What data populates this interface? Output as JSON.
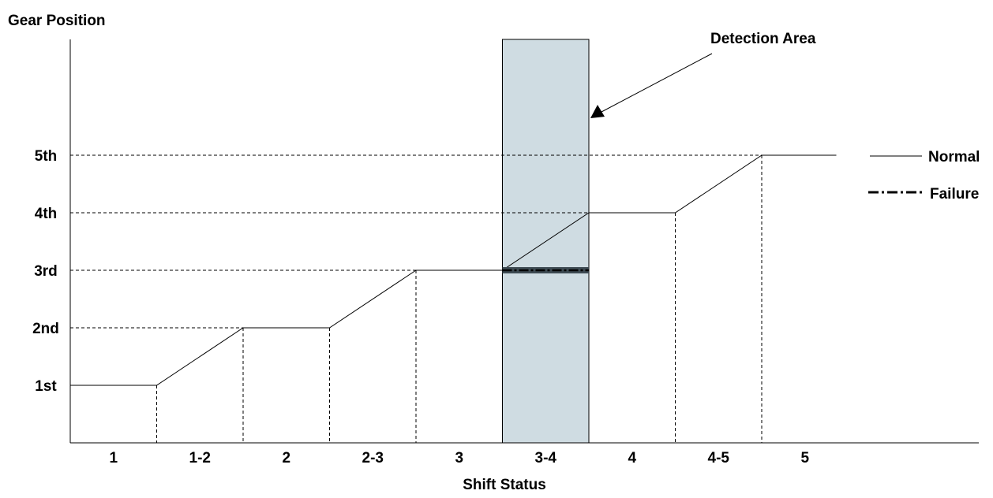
{
  "chart_data": {
    "type": "line",
    "ylabel": "Gear Position",
    "xlabel": "Shift Status",
    "categories": [
      "1",
      "1-2",
      "2",
      "2-3",
      "3",
      "3-4",
      "4",
      "4-5",
      "5"
    ],
    "y_levels": [
      "1st",
      "2nd",
      "3rd",
      "4th",
      "5th"
    ],
    "series": [
      {
        "name": "Normal",
        "style": "solid",
        "points": [
          {
            "status": "1",
            "gear": 1
          },
          {
            "status": "1-2",
            "gear": 1
          },
          {
            "status": "2",
            "gear": 2
          },
          {
            "status": "2-3",
            "gear": 2
          },
          {
            "status": "3",
            "gear": 3
          },
          {
            "status": "3-4",
            "gear": 3
          },
          {
            "status": "4",
            "gear": 4
          },
          {
            "status": "4-5",
            "gear": 4
          },
          {
            "status": "5",
            "gear": 5
          }
        ]
      },
      {
        "name": "Failure",
        "style": "dash-dot",
        "segment": {
          "status": "3-4",
          "gear": 3
        }
      }
    ],
    "detection_area": {
      "label": "Detection Area",
      "status": "3-4",
      "fill": "#cfdce2"
    },
    "grid": "dashed",
    "legend": "right"
  }
}
